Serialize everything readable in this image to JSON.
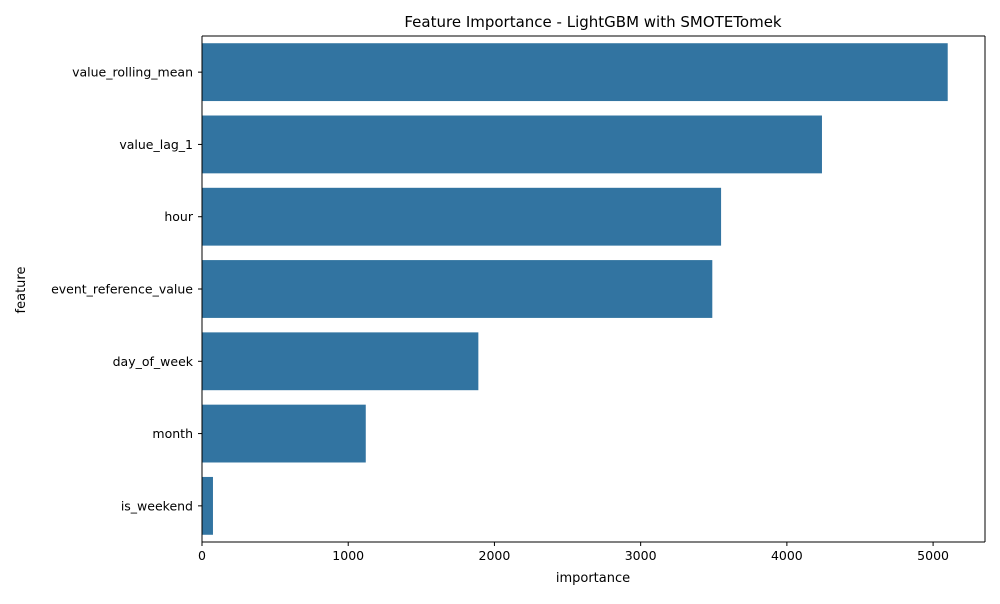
{
  "chart_data": {
    "type": "bar",
    "orientation": "horizontal",
    "title": "Feature Importance - LightGBM with SMOTETomek",
    "xlabel": "importance",
    "ylabel": "feature",
    "categories": [
      "value_rolling_mean",
      "value_lag_1",
      "hour",
      "event_reference_value",
      "day_of_week",
      "month",
      "is_weekend"
    ],
    "values": [
      5100,
      4240,
      3550,
      3490,
      1890,
      1120,
      75
    ],
    "xlim": [
      0,
      5355
    ],
    "xticks": [
      0,
      1000,
      2000,
      3000,
      4000,
      5000
    ],
    "xtick_labels": [
      "0",
      "1000",
      "2000",
      "3000",
      "4000",
      "5000"
    ],
    "grid": false,
    "legend": "none",
    "bar_color": "#3274a1",
    "axis_color": "#000000"
  }
}
